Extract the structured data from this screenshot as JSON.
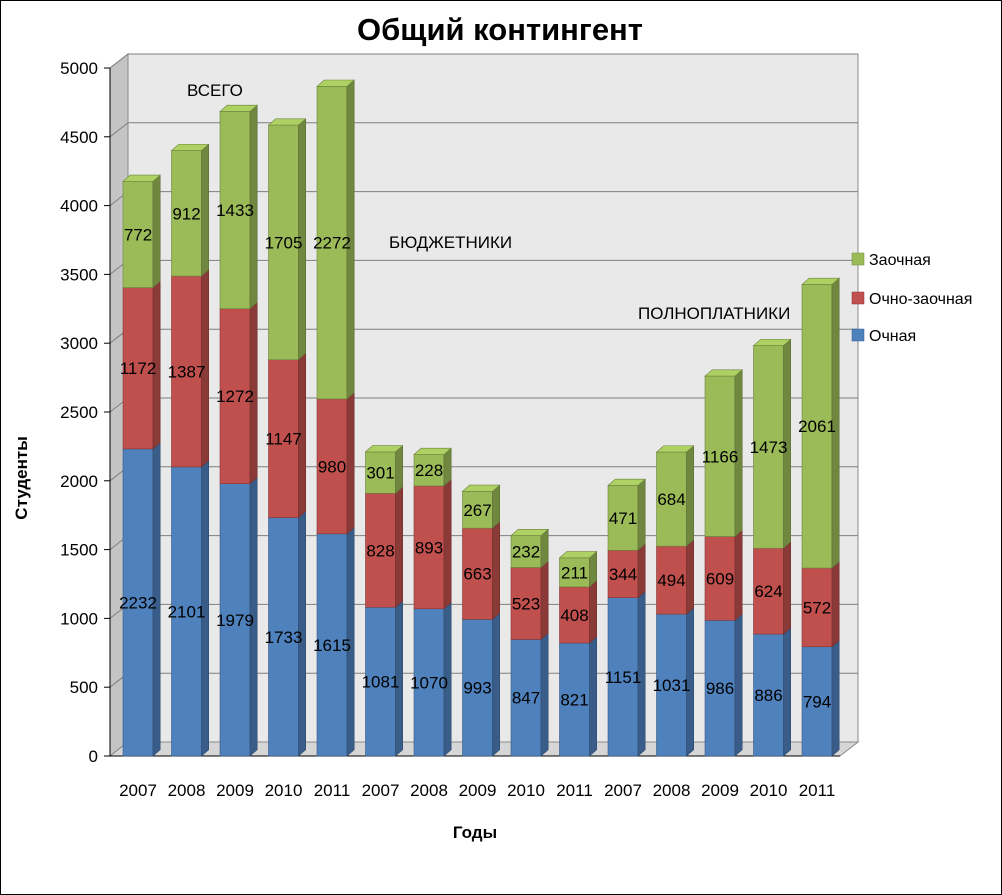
{
  "chart_data": {
    "type": "bar",
    "stacked": true,
    "title": "Общий контингент",
    "xlabel": "Годы",
    "ylabel": "Студенты",
    "ylim": [
      0,
      5000
    ],
    "yticks": [
      "0",
      "500",
      "1000",
      "1500",
      "2000",
      "2500",
      "3000",
      "3500",
      "4000",
      "4500",
      "5000"
    ],
    "categories": [
      "2007",
      "2008",
      "2009",
      "2010",
      "2011",
      "2007",
      "2008",
      "2009",
      "2010",
      "2011",
      "2007",
      "2008",
      "2009",
      "2010",
      "2011"
    ],
    "series": [
      {
        "name": "Очная",
        "color": "#4F81BD",
        "values": [
          2232,
          2101,
          1979,
          1733,
          1615,
          1081,
          1070,
          993,
          847,
          821,
          1151,
          1031,
          986,
          886,
          794
        ]
      },
      {
        "name": "Очно-заочная",
        "color": "#C0504D",
        "values": [
          1172,
          1387,
          1272,
          1147,
          980,
          828,
          893,
          663,
          523,
          408,
          344,
          494,
          609,
          624,
          572
        ]
      },
      {
        "name": "Заочная",
        "color": "#9BBB59",
        "values": [
          772,
          912,
          1433,
          1705,
          2272,
          301,
          228,
          267,
          232,
          211,
          471,
          684,
          1166,
          1473,
          2061
        ]
      }
    ],
    "annotations": [
      "ВСЕГО",
      "БЮДЖЕТНИКИ",
      "ПОЛНОПЛАТНИКИ"
    ],
    "legend_position": "right",
    "grid": true,
    "style": "3d"
  }
}
